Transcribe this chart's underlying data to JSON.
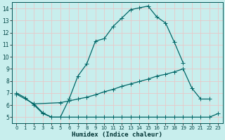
{
  "xlabel": "Humidex (Indice chaleur)",
  "bg_color": "#c8eeed",
  "grid_color": "#e8c8c8",
  "line_color": "#006666",
  "xlim": [
    -0.5,
    23.5
  ],
  "ylim": [
    4.5,
    14.5
  ],
  "xticks": [
    0,
    1,
    2,
    3,
    4,
    5,
    6,
    7,
    8,
    9,
    10,
    11,
    12,
    13,
    14,
    15,
    16,
    17,
    18,
    19,
    20,
    21,
    22,
    23
  ],
  "yticks": [
    5,
    6,
    7,
    8,
    9,
    10,
    11,
    12,
    13,
    14
  ],
  "line1_x": [
    0,
    1,
    2,
    3,
    4,
    5,
    6,
    7,
    8,
    9,
    10,
    11,
    12,
    13,
    14,
    15,
    16,
    17,
    18,
    19
  ],
  "line1_y": [
    7.0,
    6.6,
    6.0,
    5.3,
    5.0,
    5.0,
    6.5,
    8.4,
    9.4,
    11.3,
    11.5,
    12.5,
    13.2,
    13.9,
    14.05,
    14.2,
    13.3,
    12.8,
    11.2,
    9.5
  ],
  "line2_x": [
    0,
    2,
    5,
    6,
    7,
    8,
    9,
    10,
    11,
    12,
    13,
    14,
    15,
    16,
    17,
    18,
    19,
    20,
    21,
    22
  ],
  "line2_y": [
    6.9,
    6.1,
    6.2,
    6.35,
    6.5,
    6.65,
    6.85,
    7.1,
    7.3,
    7.55,
    7.75,
    7.95,
    8.15,
    8.4,
    8.55,
    8.75,
    9.0,
    7.4,
    6.5,
    6.5
  ],
  "line3_x": [
    2,
    3,
    4,
    5,
    6,
    7,
    8,
    9,
    10,
    11,
    12,
    13,
    14,
    15,
    16,
    17,
    18,
    19,
    20,
    21,
    22,
    23
  ],
  "line3_y": [
    6.1,
    5.35,
    5.0,
    5.0,
    5.0,
    5.0,
    5.0,
    5.0,
    5.0,
    5.0,
    5.0,
    5.0,
    5.0,
    5.0,
    5.0,
    5.0,
    5.0,
    5.0,
    5.0,
    5.0,
    5.0,
    5.3
  ]
}
